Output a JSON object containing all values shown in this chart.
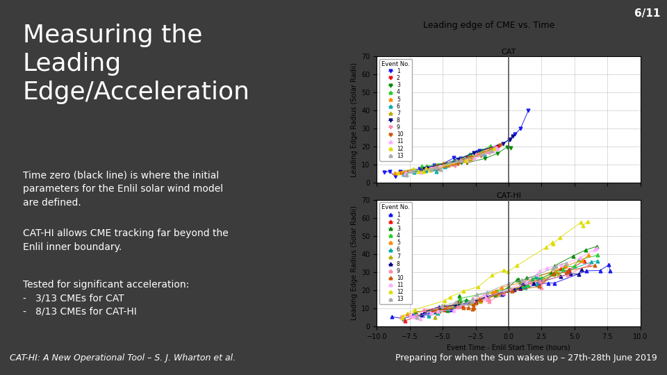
{
  "bg_color": "#3c3c3c",
  "slide_title_line1": "Measuring the",
  "slide_title_line2": "Leading",
  "slide_title_line3": "Edge/Acceleration",
  "slide_title_color": "#ffffff",
  "slide_title_fontsize": 26,
  "body_text1": "Time zero (black line) is where the initial\nparameters for the Enlil solar wind model\nare defined.",
  "body_text2": "CAT-HI allows CME tracking far beyond the\nEnlil inner boundary.",
  "body_text3": "Tested for significant acceleration:\n-   3/13 CMEs for CAT\n-   8/13 CMEs for CAT-HI",
  "body_text_color": "#ffffff",
  "body_text_fontsize": 10,
  "footer_bg": "#1a1a1a",
  "footer_left": "CAT-HI: A New Operational Tool – S. J. Wharton et al.",
  "footer_right": "Preparing for when the Sun wakes up – 27th-28th June 2019",
  "footer_fontsize": 9,
  "slide_number": "6/11",
  "slide_number_fontsize": 11,
  "chart_title": "Leading edge of CME vs. Time",
  "chart_title_fontsize": 9,
  "xlabel": "Event Time - Enlil Start Time (hours)",
  "ylabel": "Leading Edge Radius (Solar Radii)",
  "axis_fontsize": 7,
  "tick_fontsize": 7,
  "xlim": [
    -10,
    10
  ],
  "ylim": [
    0,
    70
  ],
  "cat_title": "CAT",
  "cathi_title": "CAT-HI",
  "event_colors": [
    "#1010ee",
    "#ee1010",
    "#008800",
    "#22cc22",
    "#ff8800",
    "#00aaaa",
    "#bbaa00",
    "#000088",
    "#ff88aa",
    "#cc5500",
    "#ffaaff",
    "#dddd00",
    "#aaaaaa"
  ],
  "cat_markers": [
    "v",
    "v",
    "v",
    "^",
    "^",
    "^",
    "^",
    "v",
    "v",
    "v",
    "^",
    "^",
    "^"
  ],
  "cathi_markers": [
    "^",
    "^",
    "^",
    "^",
    "^",
    "^",
    "^",
    "^",
    "^",
    "^",
    "^",
    "^",
    "^"
  ],
  "n_events": 13,
  "legend_title": "Event No.",
  "legend_fontsize": 5.5,
  "legend_title_fontsize": 6
}
